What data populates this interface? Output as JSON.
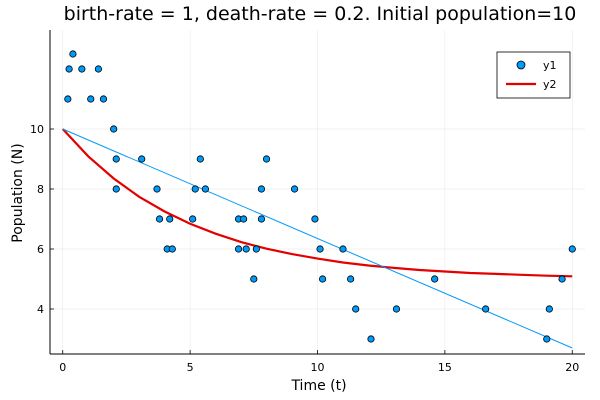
{
  "chart_data": {
    "type": "scatter",
    "title": "birth-rate = 1, death-rate = 0.2. Initial population=10",
    "xlabel": "Time (t)",
    "ylabel": "Population (N)",
    "xlim": [
      -0.5,
      20.5
    ],
    "ylim": [
      2.5,
      13.3
    ],
    "xticks": [
      0,
      5,
      10,
      15,
      20
    ],
    "yticks": [
      4,
      6,
      8,
      10
    ],
    "grid": true,
    "legend_position": "top-right",
    "series": [
      {
        "name": "y1",
        "kind": "scatter",
        "color": "#009AF9",
        "x": [
          0.2,
          0.25,
          0.4,
          0.75,
          1.1,
          1.4,
          1.6,
          2.0,
          2.1,
          2.1,
          3.1,
          3.7,
          3.8,
          4.1,
          4.2,
          4.3,
          5.1,
          5.2,
          5.4,
          5.6,
          6.9,
          6.9,
          7.1,
          7.2,
          7.5,
          7.6,
          7.8,
          7.8,
          8.0,
          9.1,
          9.9,
          10.1,
          10.2,
          11.0,
          11.3,
          11.5,
          12.1,
          13.1,
          14.6,
          16.6,
          19.0,
          19.1,
          19.6,
          20.0
        ],
        "y": [
          11,
          12,
          12.5,
          12,
          11,
          12,
          11,
          10,
          9,
          8,
          9,
          8,
          7,
          6,
          7,
          6,
          7,
          8,
          9,
          8,
          7,
          6,
          7,
          6,
          5,
          6,
          8,
          7,
          9,
          8,
          7,
          6,
          5,
          6,
          5,
          4,
          3,
          4,
          5,
          4,
          3,
          4,
          5,
          6
        ]
      },
      {
        "name": "y2",
        "kind": "line",
        "color": "#E50000",
        "function": "N(t) = 5 + 5*exp(-0.2*t)",
        "x": [
          0,
          1,
          2,
          3,
          4,
          5,
          6,
          7,
          8,
          9,
          10,
          11,
          12,
          13,
          14,
          15,
          16,
          17,
          18,
          19,
          20
        ],
        "y": [
          10.0,
          9.09,
          8.35,
          7.74,
          7.25,
          6.84,
          6.51,
          6.23,
          6.01,
          5.83,
          5.68,
          5.55,
          5.45,
          5.37,
          5.3,
          5.25,
          5.2,
          5.17,
          5.14,
          5.11,
          5.09
        ]
      },
      {
        "name": "",
        "kind": "line",
        "color": "#009AF9",
        "x": [
          0,
          20
        ],
        "y": [
          10,
          2.7
        ]
      }
    ]
  }
}
